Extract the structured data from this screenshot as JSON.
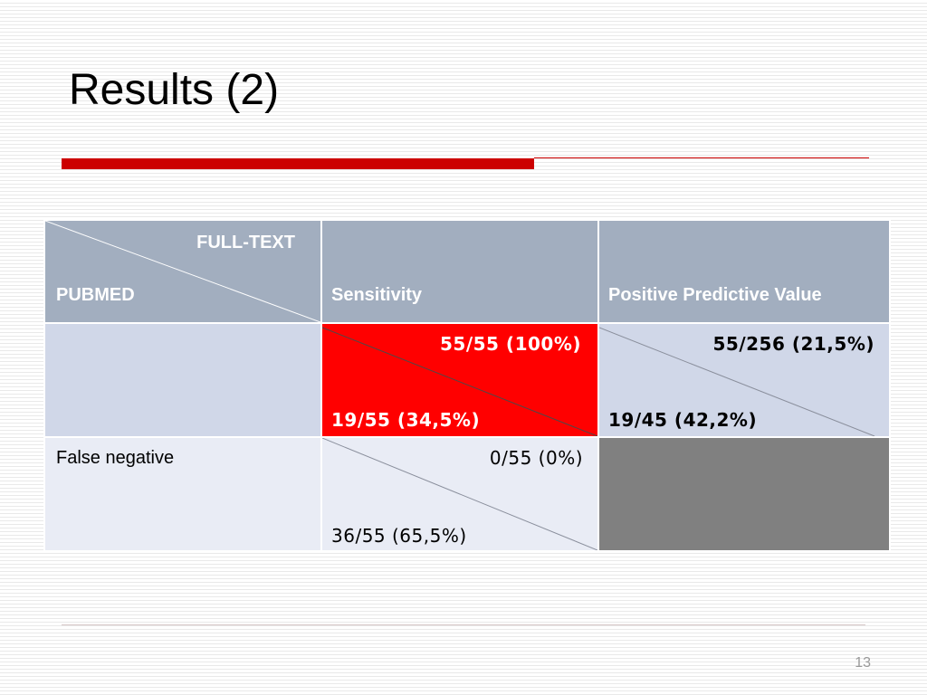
{
  "slide": {
    "title": "Results (2)",
    "page_number": "13"
  },
  "table": {
    "header": {
      "corner_top": "FULL-TEXT",
      "corner_bottom": "PUBMED",
      "col2": "Sensitivity",
      "col3": "Positive Predictive Value"
    },
    "row1": {
      "label": "",
      "sensitivity_full_text": "55/55 (100%)",
      "sensitivity_pubmed": "19/55 (34,5%)",
      "ppv_full_text": "55/256 (21,5%)",
      "ppv_pubmed": "19/45 (42,2%)"
    },
    "row2": {
      "label": "False negative",
      "sensitivity_full_text": "0/55 (0%)",
      "sensitivity_pubmed": "36/55 (65,5%)"
    }
  },
  "colors": {
    "accent_red": "#cc0000",
    "header_bg": "#a2aebf",
    "row_dark": "#d0d7e8",
    "row_light": "#e9ecf5",
    "highlight_red": "#ff0000",
    "empty_cell": "#808080"
  }
}
